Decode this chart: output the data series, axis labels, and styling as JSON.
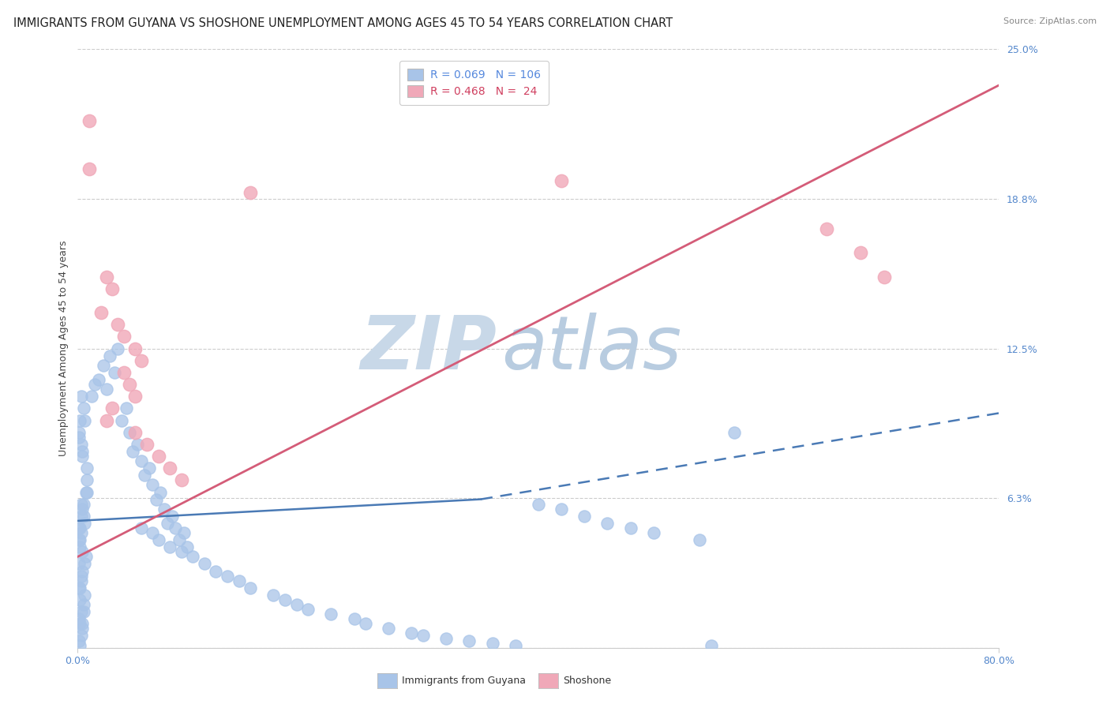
{
  "title": "IMMIGRANTS FROM GUYANA VS SHOSHONE UNEMPLOYMENT AMONG AGES 45 TO 54 YEARS CORRELATION CHART",
  "source": "Source: ZipAtlas.com",
  "ylabel": "Unemployment Among Ages 45 to 54 years",
  "xlim": [
    0.0,
    0.8
  ],
  "ylim": [
    0.0,
    0.25
  ],
  "yticks": [
    0.0,
    0.0625,
    0.125,
    0.1875,
    0.25
  ],
  "ytick_labels": [
    "",
    "6.3%",
    "12.5%",
    "18.8%",
    "25.0%"
  ],
  "xtick_labels": [
    "0.0%",
    "80.0%"
  ],
  "legend_entry1": "R = 0.069   N = 106",
  "legend_entry2": "R = 0.468   N =  24",
  "label1": "Immigrants from Guyana",
  "label2": "Shoshone",
  "color1": "#a8c4e8",
  "color2": "#f0a8b8",
  "line_color1": "#4a7ab5",
  "line_color2": "#d45c78",
  "watermark_zip_color": "#c8d8e8",
  "watermark_atlas_color": "#b8cce0",
  "background_color": "#ffffff",
  "grid_color": "#cccccc",
  "title_color": "#222222",
  "source_color": "#888888",
  "tick_color": "#5588cc",
  "ylabel_color": "#444444",
  "title_fontsize": 10.5,
  "axis_tick_fontsize": 9,
  "legend_fontsize": 10,
  "ylabel_fontsize": 9,
  "blue_line_x": [
    0.0,
    0.35,
    0.8
  ],
  "blue_line_y": [
    0.053,
    0.062,
    0.098
  ],
  "pink_line_x": [
    0.0,
    0.8
  ],
  "pink_line_y": [
    0.038,
    0.235
  ],
  "blue_pts_x": [
    0.005,
    0.003,
    0.002,
    0.001,
    0.008,
    0.004,
    0.006,
    0.003,
    0.002,
    0.007,
    0.001,
    0.004,
    0.003,
    0.002,
    0.006,
    0.005,
    0.003,
    0.001,
    0.002,
    0.004,
    0.008,
    0.007,
    0.003,
    0.005,
    0.001,
    0.002,
    0.004,
    0.006,
    0.003,
    0.001,
    0.002,
    0.005,
    0.004,
    0.003,
    0.001,
    0.002,
    0.008,
    0.004,
    0.003,
    0.001,
    0.006,
    0.005,
    0.003,
    0.002,
    0.001,
    0.004,
    0.012,
    0.018,
    0.025,
    0.032,
    0.015,
    0.022,
    0.028,
    0.035,
    0.042,
    0.038,
    0.045,
    0.052,
    0.048,
    0.055,
    0.062,
    0.058,
    0.065,
    0.072,
    0.068,
    0.075,
    0.082,
    0.078,
    0.085,
    0.092,
    0.088,
    0.095,
    0.055,
    0.065,
    0.07,
    0.08,
    0.09,
    0.1,
    0.11,
    0.12,
    0.13,
    0.14,
    0.15,
    0.17,
    0.18,
    0.19,
    0.2,
    0.22,
    0.24,
    0.25,
    0.27,
    0.29,
    0.3,
    0.32,
    0.34,
    0.36,
    0.38,
    0.4,
    0.42,
    0.44,
    0.46,
    0.48,
    0.5,
    0.54,
    0.57,
    0.55
  ],
  "blue_pts_y": [
    0.06,
    0.055,
    0.05,
    0.045,
    0.065,
    0.058,
    0.052,
    0.048,
    0.042,
    0.038,
    0.035,
    0.032,
    0.028,
    0.025,
    0.022,
    0.018,
    0.015,
    0.012,
    0.01,
    0.008,
    0.07,
    0.065,
    0.06,
    0.055,
    0.05,
    0.045,
    0.04,
    0.035,
    0.03,
    0.025,
    0.02,
    0.015,
    0.01,
    0.005,
    0.003,
    0.001,
    0.075,
    0.08,
    0.085,
    0.09,
    0.095,
    0.1,
    0.105,
    0.095,
    0.088,
    0.082,
    0.105,
    0.112,
    0.108,
    0.115,
    0.11,
    0.118,
    0.122,
    0.125,
    0.1,
    0.095,
    0.09,
    0.085,
    0.082,
    0.078,
    0.075,
    0.072,
    0.068,
    0.065,
    0.062,
    0.058,
    0.055,
    0.052,
    0.05,
    0.048,
    0.045,
    0.042,
    0.05,
    0.048,
    0.045,
    0.042,
    0.04,
    0.038,
    0.035,
    0.032,
    0.03,
    0.028,
    0.025,
    0.022,
    0.02,
    0.018,
    0.016,
    0.014,
    0.012,
    0.01,
    0.008,
    0.006,
    0.005,
    0.004,
    0.003,
    0.002,
    0.001,
    0.06,
    0.058,
    0.055,
    0.052,
    0.05,
    0.048,
    0.045,
    0.09,
    0.001
  ],
  "pink_pts_x": [
    0.01,
    0.01,
    0.15,
    0.025,
    0.03,
    0.02,
    0.035,
    0.04,
    0.05,
    0.055,
    0.04,
    0.045,
    0.05,
    0.03,
    0.025,
    0.05,
    0.06,
    0.07,
    0.08,
    0.09,
    0.42,
    0.65,
    0.68,
    0.7
  ],
  "pink_pts_y": [
    0.22,
    0.2,
    0.19,
    0.155,
    0.15,
    0.14,
    0.135,
    0.13,
    0.125,
    0.12,
    0.115,
    0.11,
    0.105,
    0.1,
    0.095,
    0.09,
    0.085,
    0.08,
    0.075,
    0.07,
    0.195,
    0.175,
    0.165,
    0.155
  ]
}
